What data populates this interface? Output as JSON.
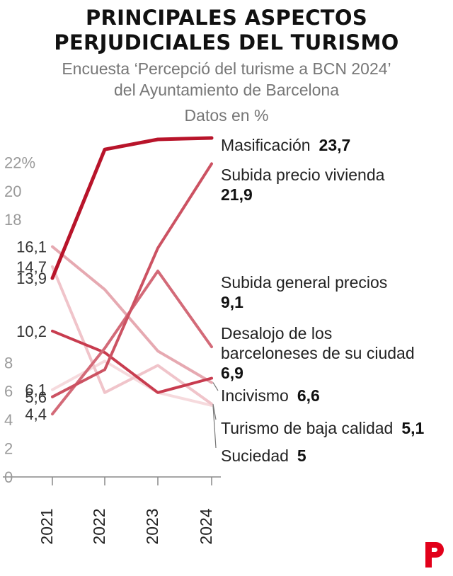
{
  "title_line1": "PRINCIPALES ASPECTOS",
  "title_line2": "PERJUDICIALES DEL TURISMO",
  "subtitle_line1": "Encuesta ‘Percepció del turisme a BCN 2024’",
  "subtitle_line2": "del Ayuntamiento de Barcelona",
  "units": "Datos en %",
  "brand_logo": "P",
  "chart_data": {
    "type": "line",
    "title": "PRINCIPALES ASPECTOS PERJUDICIALES DEL TURISMO",
    "ylabel": "Datos en %",
    "xlabel": "",
    "categories": [
      "2021",
      "2022",
      "2023",
      "2024"
    ],
    "ylim": [
      0,
      23.7
    ],
    "yticks": [
      {
        "value": 0,
        "label": "0"
      },
      {
        "value": 2,
        "label": "2"
      },
      {
        "value": 4,
        "label": "4"
      },
      {
        "value": 6,
        "label": "6"
      },
      {
        "value": 8,
        "label": "8"
      },
      {
        "value": 18,
        "label": "18"
      },
      {
        "value": 20,
        "label": "20"
      },
      {
        "value": 22,
        "label": "22%"
      }
    ],
    "start_labels": [
      {
        "value": 16.1,
        "label": "16,1"
      },
      {
        "value": 14.7,
        "label": "14,7"
      },
      {
        "value": 13.9,
        "label": "13,9"
      },
      {
        "value": 10.2,
        "label": "10,2"
      },
      {
        "value": 6.1,
        "label": "6,1"
      },
      {
        "value": 5.6,
        "label": "5,6"
      },
      {
        "value": 4.4,
        "label": "4,4"
      }
    ],
    "series": [
      {
        "name": "Masificación",
        "values": [
          13.9,
          22.9,
          23.6,
          23.7
        ],
        "end_label": "23,7",
        "color": "#b8142a",
        "width": 5
      },
      {
        "name": "Subida precio vivienda",
        "values": [
          5.6,
          7.5,
          16.0,
          21.9
        ],
        "end_label": "21,9",
        "color": "#cc5262",
        "width": 4
      },
      {
        "name": "Subida general precios",
        "values": [
          4.4,
          9.0,
          14.4,
          9.1
        ],
        "end_label": "9,1",
        "color": "#d36a78",
        "width": 4
      },
      {
        "name": "Desalojo de los barceloneses de su ciudad",
        "values": [
          10.2,
          8.7,
          5.9,
          6.9
        ],
        "end_label": "6,9",
        "color": "#c83c4f",
        "width": 4
      },
      {
        "name": "Incivismo",
        "values": [
          16.1,
          13.1,
          8.8,
          6.6
        ],
        "end_label": "6,6",
        "color": "#e6a9b1",
        "width": 4
      },
      {
        "name": "Turismo de baja calidad",
        "values": [
          14.7,
          5.9,
          7.8,
          5.1
        ],
        "end_label": "5,1",
        "color": "#f0c4ca",
        "width": 4
      },
      {
        "name": "Suciedad",
        "values": [
          6.1,
          8.1,
          5.9,
          5.0
        ],
        "end_label": "5",
        "color": "#f6dadd",
        "width": 4
      }
    ]
  }
}
